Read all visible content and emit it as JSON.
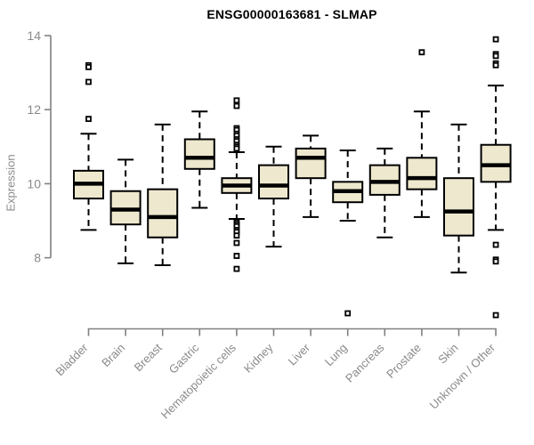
{
  "title": "ENSG00000163681 - SLMAP",
  "chart_data": {
    "type": "boxplot",
    "title": "ENSG00000163681 - SLMAP",
    "xlabel": "",
    "ylabel": "Expression",
    "ylim": [
      6.08,
      14
    ],
    "yticks": [
      8,
      10,
      12,
      14
    ],
    "grid": false,
    "legend": "none",
    "categories": [
      "Bladder",
      "Brain",
      "Breast",
      "Gastric",
      "Hematopoietic cells",
      "Kidney",
      "Liver",
      "Lung",
      "Pancreas",
      "Prostate",
      "Skin",
      "Unknown / Other"
    ],
    "series": [
      {
        "name": "Bladder",
        "low": 8.75,
        "q1": 9.6,
        "median": 10.0,
        "q3": 10.35,
        "high": 11.35,
        "outliers": [
          13.2,
          13.15,
          12.75,
          11.75
        ]
      },
      {
        "name": "Brain",
        "low": 7.85,
        "q1": 8.9,
        "median": 9.3,
        "q3": 9.8,
        "high": 10.65,
        "outliers": []
      },
      {
        "name": "Breast",
        "low": 7.8,
        "q1": 8.55,
        "median": 9.1,
        "q3": 9.85,
        "high": 11.6,
        "outliers": []
      },
      {
        "name": "Gastric",
        "low": 9.35,
        "q1": 10.4,
        "median": 10.7,
        "q3": 11.2,
        "high": 11.95,
        "outliers": []
      },
      {
        "name": "Hematopoietic cells",
        "low": 9.05,
        "q1": 9.75,
        "median": 9.95,
        "q3": 10.15,
        "high": 10.85,
        "outliers": [
          12.25,
          12.1,
          11.5,
          11.45,
          11.35,
          11.3,
          11.2,
          11.15,
          11.05,
          11.0,
          10.95,
          8.95,
          8.9,
          8.85,
          8.75,
          8.7,
          8.6,
          8.4,
          8.05,
          7.7
        ]
      },
      {
        "name": "Kidney",
        "low": 8.3,
        "q1": 9.6,
        "median": 9.95,
        "q3": 10.5,
        "high": 11.0,
        "outliers": []
      },
      {
        "name": "Liver",
        "low": 9.1,
        "q1": 10.15,
        "median": 10.7,
        "q3": 10.95,
        "high": 11.3,
        "outliers": []
      },
      {
        "name": "Lung",
        "low": 9.0,
        "q1": 9.5,
        "median": 9.8,
        "q3": 10.05,
        "high": 10.9,
        "outliers": [
          6.5
        ]
      },
      {
        "name": "Pancreas",
        "low": 8.55,
        "q1": 9.7,
        "median": 10.05,
        "q3": 10.5,
        "high": 10.95,
        "outliers": []
      },
      {
        "name": "Prostate",
        "low": 9.1,
        "q1": 9.85,
        "median": 10.15,
        "q3": 10.7,
        "high": 11.95,
        "outliers": [
          13.55
        ]
      },
      {
        "name": "Skin",
        "low": 7.6,
        "q1": 8.6,
        "median": 9.25,
        "q3": 10.15,
        "high": 11.6,
        "outliers": []
      },
      {
        "name": "Unknown / Other",
        "low": 8.75,
        "q1": 10.05,
        "median": 10.5,
        "q3": 11.05,
        "high": 12.65,
        "outliers": [
          13.9,
          13.5,
          13.45,
          13.25,
          13.2,
          8.35,
          7.95,
          7.9,
          6.45
        ]
      }
    ]
  },
  "colors": {
    "box_fill": "#EDE8CE",
    "box_stroke": "#000000",
    "median": "#000000",
    "axis": "#808080",
    "tick_text": "#8a8a8a",
    "title_text": "#000000",
    "background": "#ffffff"
  }
}
